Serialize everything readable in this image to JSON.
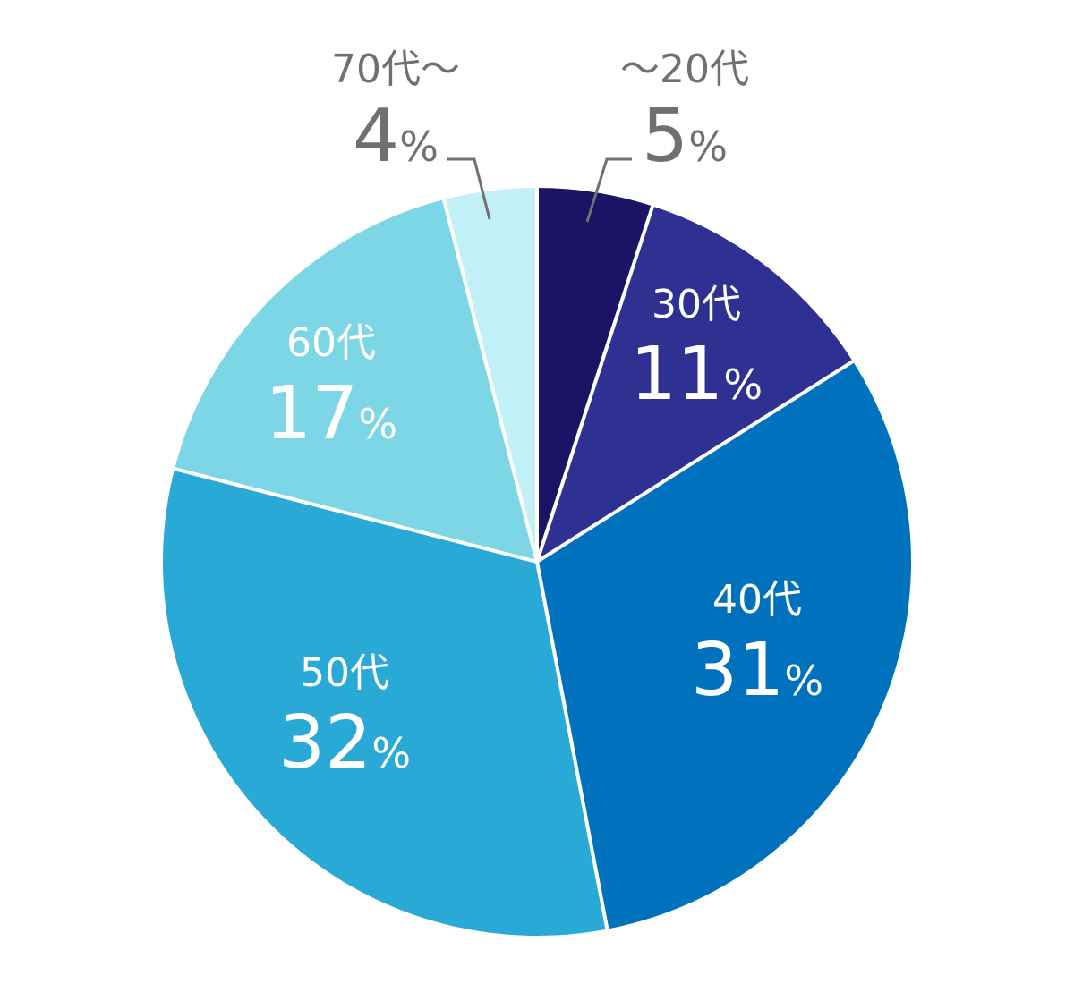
{
  "chart_data": {
    "type": "pie",
    "categories": [
      "～20代",
      "30代",
      "40代",
      "50代",
      "60代",
      "70代～"
    ],
    "values": [
      5,
      11,
      31,
      32,
      17,
      4
    ],
    "value_labels": [
      "5",
      "11",
      "31",
      "32",
      "17",
      "4"
    ],
    "unit": "%",
    "start": "12 o'clock, clockwise",
    "legend": "none",
    "colors": [
      "#1b1464",
      "#2e3192",
      "#0071bc",
      "#29a9d6",
      "#7dd6e6",
      "#c2f0f7"
    ],
    "label_colors": [
      "#707070",
      "#ffffff",
      "#ffffff",
      "#ffffff",
      "#ffffff",
      "#707070"
    ]
  }
}
